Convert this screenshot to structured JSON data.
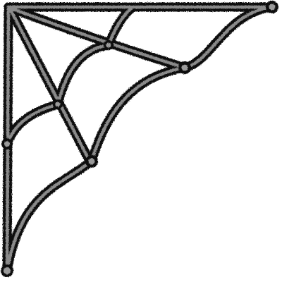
{
  "image": {
    "subject": "spider-web",
    "colors": {
      "background": "#ffffff",
      "outline": "#0e0e0e",
      "strand": "#8a8a8a",
      "knot": "#9a9a9a"
    }
  }
}
